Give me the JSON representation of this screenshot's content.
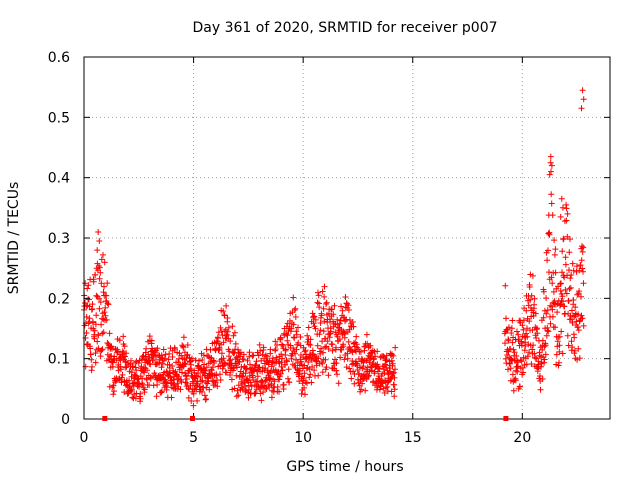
{
  "chart_data": {
    "type": "scatter",
    "title": "Day 361 of 2020, SRMTID for receiver p007",
    "xlabel": "GPS time / hours",
    "ylabel": "SRMTID / TECUs",
    "xlim": [
      0,
      24
    ],
    "ylim": [
      0,
      0.6
    ],
    "xticks": [
      0,
      5,
      10,
      15,
      20
    ],
    "xtick_labels": [
      "0",
      "5",
      "10",
      "15",
      "20"
    ],
    "yticks": [
      0,
      0.1,
      0.2,
      0.3,
      0.4,
      0.5,
      0.6
    ],
    "ytick_labels": [
      "0",
      "0.1",
      "0.2",
      "0.3",
      "0.4",
      "0.5",
      "0.6"
    ],
    "grid": true,
    "marker": "+",
    "color": "#ff0000",
    "series": [
      {
        "name": "SRMTID",
        "segments": [
          {
            "t_start": 0.0,
            "t_end": 14.2,
            "profile": [
              [
                0.0,
                0.15
              ],
              [
                0.5,
                0.17
              ],
              [
                0.9,
                0.2
              ],
              [
                1.3,
                0.08
              ],
              [
                1.8,
                0.09
              ],
              [
                2.0,
                0.07
              ],
              [
                2.6,
                0.06
              ],
              [
                3.0,
                0.1
              ],
              [
                3.4,
                0.08
              ],
              [
                4.0,
                0.08
              ],
              [
                4.6,
                0.09
              ],
              [
                5.0,
                0.06
              ],
              [
                5.5,
                0.07
              ],
              [
                6.0,
                0.09
              ],
              [
                6.5,
                0.14
              ],
              [
                7.0,
                0.08
              ],
              [
                7.5,
                0.07
              ],
              [
                8.5,
                0.08
              ],
              [
                9.0,
                0.09
              ],
              [
                9.5,
                0.14
              ],
              [
                10.0,
                0.08
              ],
              [
                10.5,
                0.13
              ],
              [
                11.0,
                0.15
              ],
              [
                11.5,
                0.12
              ],
              [
                12.0,
                0.14
              ],
              [
                12.5,
                0.09
              ],
              [
                13.0,
                0.09
              ],
              [
                13.5,
                0.07
              ],
              [
                14.2,
                0.08
              ]
            ]
          },
          {
            "t_start": 19.2,
            "t_end": 22.8,
            "profile": [
              [
                19.2,
                0.15
              ],
              [
                19.7,
                0.1
              ],
              [
                20.0,
                0.12
              ],
              [
                20.5,
                0.18
              ],
              [
                20.8,
                0.08
              ],
              [
                21.1,
                0.2
              ],
              [
                21.3,
                0.3
              ],
              [
                21.6,
                0.14
              ],
              [
                21.8,
                0.18
              ],
              [
                22.0,
                0.25
              ],
              [
                22.4,
                0.16
              ],
              [
                22.8,
                0.22
              ]
            ]
          }
        ],
        "peaks": [
          [
            0.65,
            0.31
          ],
          [
            21.3,
            0.435
          ],
          [
            21.8,
            0.365
          ],
          [
            22.75,
            0.545
          ]
        ]
      }
    ],
    "data_gap_markers_x": [
      0.95,
      4.95,
      19.25
    ]
  }
}
